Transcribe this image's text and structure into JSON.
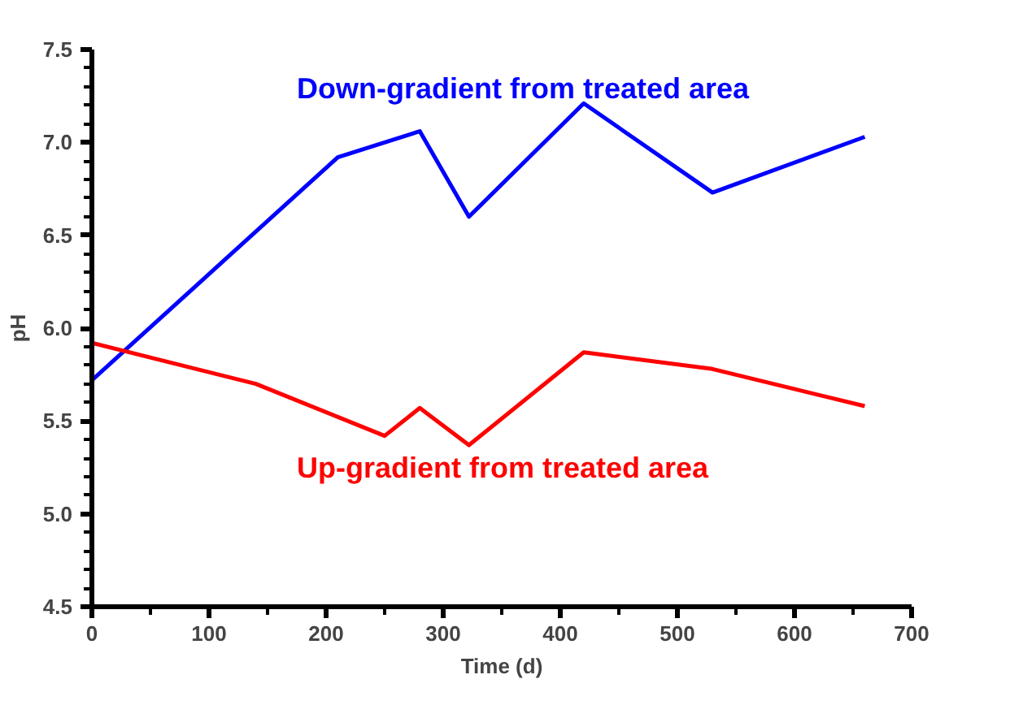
{
  "chart_data": {
    "type": "line",
    "xlabel": "Time (d)",
    "ylabel": "pH",
    "xlim": [
      0,
      700
    ],
    "ylim": [
      4.5,
      7.5
    ],
    "xticks": [
      0,
      100,
      200,
      300,
      400,
      500,
      600,
      700
    ],
    "yticks": [
      {
        "value": 4.5,
        "label": "4.5"
      },
      {
        "value": 5.0,
        "label": "5.0"
      },
      {
        "value": 5.5,
        "label": "5.5"
      },
      {
        "value": 6.0,
        "label": "6.0"
      },
      {
        "value": 6.5,
        "label": "6.5"
      },
      {
        "value": 7.0,
        "label": "7.0"
      },
      {
        "value": 7.5,
        "label": "7.5"
      }
    ],
    "grid": false,
    "legend": false,
    "marker": "none",
    "line_style": "solid",
    "series": [
      {
        "name": "Down-gradient from treated area",
        "color": "#0000ff",
        "x": [
          0,
          210,
          280,
          322,
          420,
          530,
          660
        ],
        "values": [
          5.72,
          6.92,
          7.06,
          6.6,
          7.21,
          6.73,
          7.03
        ]
      },
      {
        "name": "Up-gradient from treated area",
        "color": "#ff0000",
        "x": [
          0,
          140,
          250,
          280,
          322,
          420,
          530,
          660
        ],
        "values": [
          5.92,
          5.7,
          5.42,
          5.57,
          5.37,
          5.87,
          5.78,
          5.58
        ]
      }
    ]
  }
}
